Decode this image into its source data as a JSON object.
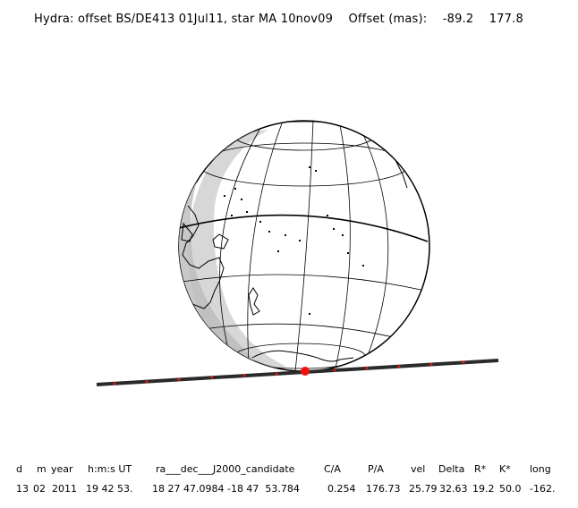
{
  "header": {
    "title": "Hydra: offset BS/DE413 01Jul11, star MA 10nov09",
    "offset_label": "Offset (mas):",
    "offset_ra": "-89.2",
    "offset_dec": "177.8"
  },
  "globe": {
    "colors": {
      "land_outline": "#000000",
      "night_shade": "#c8c8c8",
      "grid": "#000000",
      "chord": "#2a2a2a",
      "chord_tick": "#d21a1a",
      "shadow_center": "#ee1111"
    },
    "icons": [
      "globe",
      "occultation-chord",
      "shadow-center-dot"
    ]
  },
  "table": {
    "columns": [
      "d",
      "m",
      "year",
      "h:m:s UT",
      "ra___dec___J2000_candidate",
      "C/A",
      "P/A",
      "vel",
      "Delta",
      "R*",
      "K*",
      "long"
    ],
    "values": [
      "13",
      "02",
      "2011",
      "19 42 53.",
      "18 27 47.0984 -18 47  53.784",
      "0.254",
      "176.73",
      "25.79",
      "32.63",
      "19.2",
      "50.0",
      "-162."
    ]
  }
}
